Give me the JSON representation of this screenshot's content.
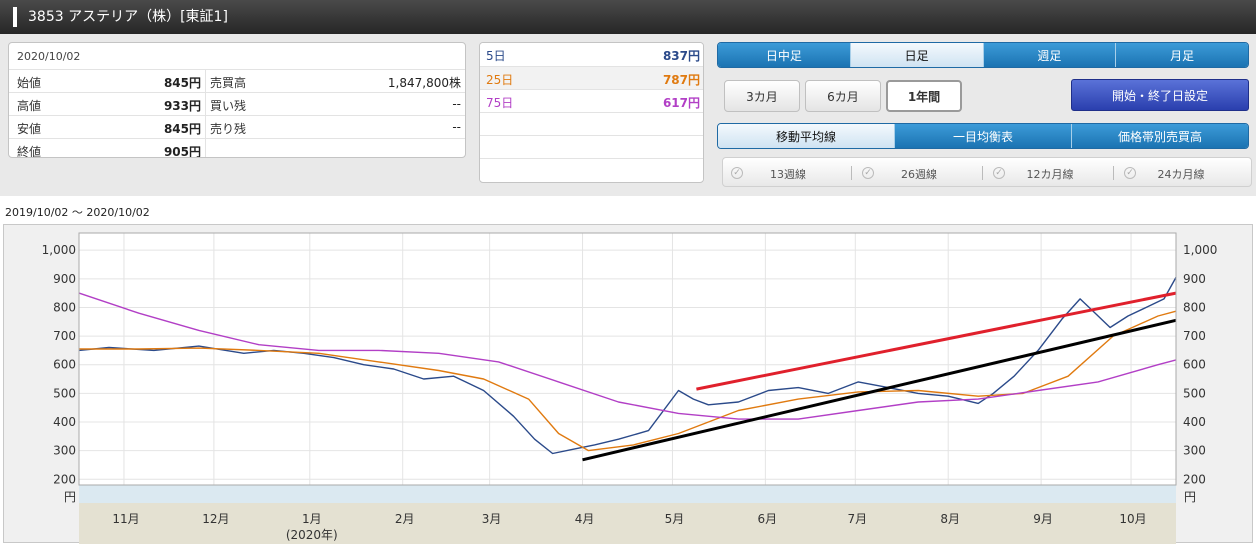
{
  "header": {
    "title": "3853 アステリア（株）[東証1]"
  },
  "quote": {
    "date": "2020/10/02",
    "rows": [
      {
        "label": "始値",
        "value": "845円",
        "label2": "売買高",
        "value2": "1,847,800株"
      },
      {
        "label": "高値",
        "value": "933円",
        "label2": "買い残",
        "value2": "--"
      },
      {
        "label": "安値",
        "value": "845円",
        "label2": "売り残",
        "value2": "--"
      },
      {
        "label": "終値",
        "value": "905円",
        "label2": "",
        "value2": ""
      }
    ]
  },
  "ma_values": [
    {
      "label": "5日",
      "value": "837円",
      "color": "#2b4a8a"
    },
    {
      "label": "25日",
      "value": "787円",
      "color": "#e07a10"
    },
    {
      "label": "75日",
      "value": "617円",
      "color": "#b23fc6"
    }
  ],
  "period_tabs": [
    {
      "label": "日中足",
      "selected": false
    },
    {
      "label": "日足",
      "selected": true
    },
    {
      "label": "週足",
      "selected": false
    },
    {
      "label": "月足",
      "selected": false
    }
  ],
  "range_buttons": [
    {
      "label": "3カ月",
      "selected": false
    },
    {
      "label": "6カ月",
      "selected": false
    },
    {
      "label": "1年間",
      "selected": true
    }
  ],
  "set_dates_button": "開始・終了日設定",
  "indicator_tabs": [
    {
      "label": "移動平均線",
      "selected": true
    },
    {
      "label": "一目均衡表",
      "selected": false
    },
    {
      "label": "価格帯別売買高",
      "selected": false
    }
  ],
  "ma_checks": [
    {
      "label": "13週線",
      "icon": "check-icon"
    },
    {
      "label": "26週線",
      "icon": "check-icon"
    },
    {
      "label": "12カ月線",
      "icon": "check-icon"
    },
    {
      "label": "24カ月線",
      "icon": "check-icon"
    }
  ],
  "date_range": "2019/10/02 〜 2020/10/02",
  "chart_data": {
    "type": "line",
    "unit_label": "円",
    "ylim": [
      180,
      1060
    ],
    "yticks": [
      200,
      300,
      400,
      500,
      600,
      700,
      800,
      900,
      1000
    ],
    "ytick_labels": [
      "200",
      "300",
      "400",
      "500",
      "600",
      "700",
      "800",
      "900",
      "1,000"
    ],
    "x_month_labels": [
      {
        "label": "11月",
        "day": 30
      },
      {
        "label": "12月",
        "day": 60
      },
      {
        "label": "1月",
        "day": 92
      },
      {
        "label": "2月",
        "day": 123
      },
      {
        "label": "3月",
        "day": 152
      },
      {
        "label": "4月",
        "day": 183
      },
      {
        "label": "5月",
        "day": 213
      },
      {
        "label": "6月",
        "day": 244
      },
      {
        "label": "7月",
        "day": 274
      },
      {
        "label": "8月",
        "day": 305
      },
      {
        "label": "9月",
        "day": 336
      },
      {
        "label": "10月",
        "day": 366
      }
    ],
    "year_label": "(2020年)",
    "x_range_days": [
      0,
      366
    ],
    "series": [
      {
        "name": "終値",
        "color": "#2b4a8a",
        "x": [
          0,
          10,
          25,
          40,
          55,
          65,
          75,
          85,
          95,
          105,
          115,
          125,
          135,
          145,
          152,
          158,
          165,
          172,
          180,
          190,
          200,
          205,
          210,
          220,
          230,
          240,
          250,
          260,
          270,
          280,
          290,
          300,
          305,
          312,
          320,
          328,
          334,
          338,
          344,
          350,
          356,
          362,
          366
        ],
        "y": [
          650,
          660,
          650,
          665,
          640,
          650,
          640,
          625,
          600,
          585,
          550,
          560,
          510,
          420,
          340,
          290,
          305,
          320,
          340,
          370,
          510,
          480,
          460,
          470,
          510,
          520,
          500,
          540,
          520,
          500,
          490,
          465,
          500,
          560,
          650,
          760,
          830,
          790,
          730,
          770,
          800,
          830,
          905
        ]
      },
      {
        "name": "25日",
        "color": "#e07a10",
        "x": [
          0,
          20,
          40,
          60,
          80,
          100,
          120,
          135,
          150,
          160,
          170,
          185,
          200,
          220,
          240,
          260,
          280,
          300,
          315,
          330,
          345,
          360,
          366
        ],
        "y": [
          655,
          655,
          658,
          650,
          640,
          610,
          580,
          550,
          480,
          360,
          300,
          320,
          360,
          440,
          480,
          505,
          510,
          490,
          500,
          560,
          700,
          770,
          787
        ]
      },
      {
        "name": "75日",
        "color": "#b23fc6",
        "x": [
          0,
          20,
          40,
          60,
          80,
          100,
          120,
          140,
          160,
          180,
          200,
          220,
          240,
          260,
          280,
          300,
          320,
          340,
          360,
          366
        ],
        "y": [
          850,
          780,
          720,
          670,
          650,
          650,
          640,
          610,
          540,
          470,
          430,
          410,
          410,
          440,
          470,
          480,
          510,
          540,
          600,
          617
        ]
      },
      {
        "name": "上値トレンドライン",
        "color": "#e0202c",
        "x": [
          206,
          366
        ],
        "y": [
          515,
          850
        ]
      },
      {
        "name": "下値トレンドライン",
        "color": "#000000",
        "x": [
          168,
          366
        ],
        "y": [
          268,
          755
        ]
      }
    ]
  }
}
